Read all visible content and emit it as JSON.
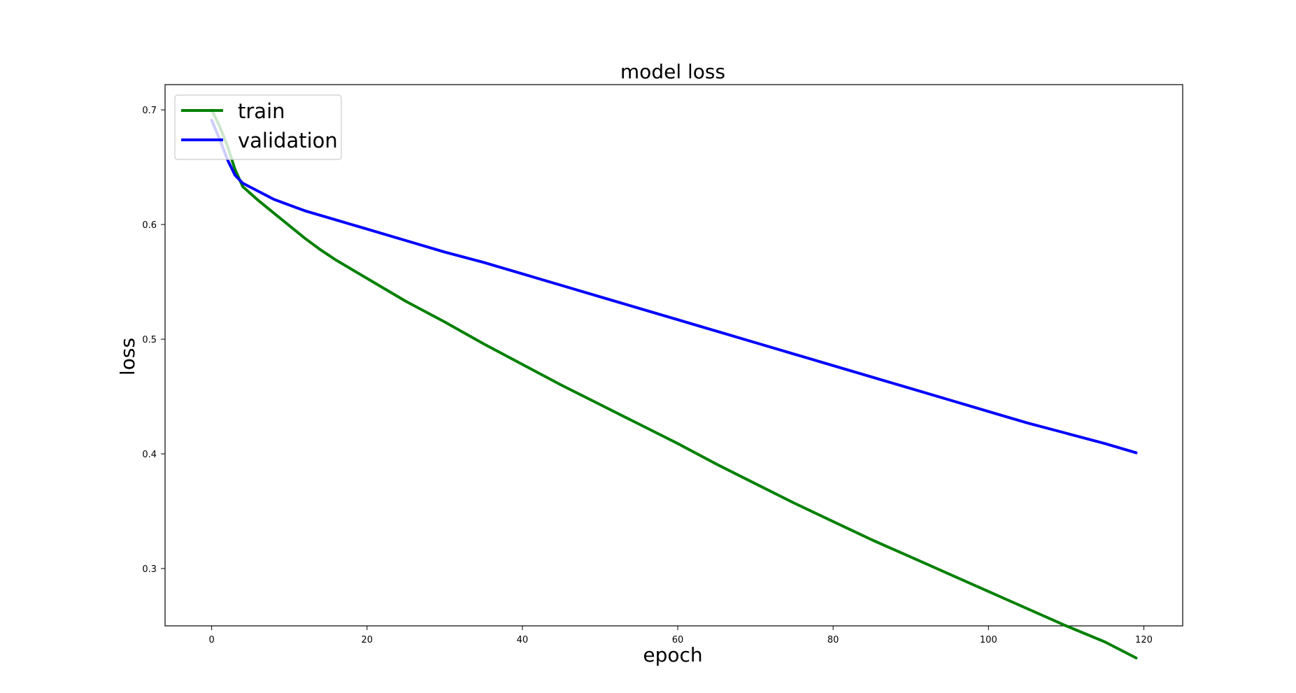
{
  "chart_data": {
    "type": "line",
    "title": "model loss",
    "xlabel": "epoch",
    "ylabel": "loss",
    "xlim": [
      -6,
      125
    ],
    "ylim": [
      0.25,
      0.722
    ],
    "xticks": [
      0,
      20,
      40,
      60,
      80,
      100,
      120
    ],
    "yticks": [
      0.3,
      0.4,
      0.5,
      0.6,
      0.7
    ],
    "grid": false,
    "legend_placement": "upper left",
    "series": [
      {
        "name": "train",
        "color": "#008000",
        "x": [
          0,
          1,
          2,
          3,
          4,
          6,
          8,
          10,
          12,
          14,
          16,
          18,
          20,
          25,
          30,
          35,
          40,
          45,
          50,
          55,
          60,
          65,
          70,
          75,
          80,
          85,
          90,
          95,
          100,
          105,
          110,
          115,
          119
        ],
        "y": [
          0.7,
          0.686,
          0.669,
          0.648,
          0.633,
          0.621,
          0.61,
          0.599,
          0.588,
          0.578,
          0.569,
          0.561,
          0.553,
          0.533,
          0.515,
          0.496,
          0.478,
          0.46,
          0.443,
          0.426,
          0.409,
          0.391,
          0.374,
          0.357,
          0.341,
          0.325,
          0.31,
          0.295,
          0.28,
          0.265,
          0.25,
          0.236,
          0.222
        ]
      },
      {
        "name": "validation",
        "color": "#0000ff",
        "x": [
          0,
          1,
          2,
          3,
          4,
          6,
          8,
          10,
          12,
          15,
          20,
          25,
          30,
          35,
          40,
          45,
          50,
          55,
          60,
          65,
          70,
          75,
          80,
          85,
          90,
          95,
          100,
          105,
          110,
          115,
          119
        ],
        "y": [
          0.691,
          0.675,
          0.657,
          0.643,
          0.636,
          0.629,
          0.622,
          0.617,
          0.612,
          0.606,
          0.596,
          0.586,
          0.576,
          0.567,
          0.557,
          0.547,
          0.537,
          0.527,
          0.517,
          0.507,
          0.497,
          0.487,
          0.477,
          0.467,
          0.457,
          0.447,
          0.437,
          0.427,
          0.418,
          0.409,
          0.401
        ]
      }
    ]
  }
}
